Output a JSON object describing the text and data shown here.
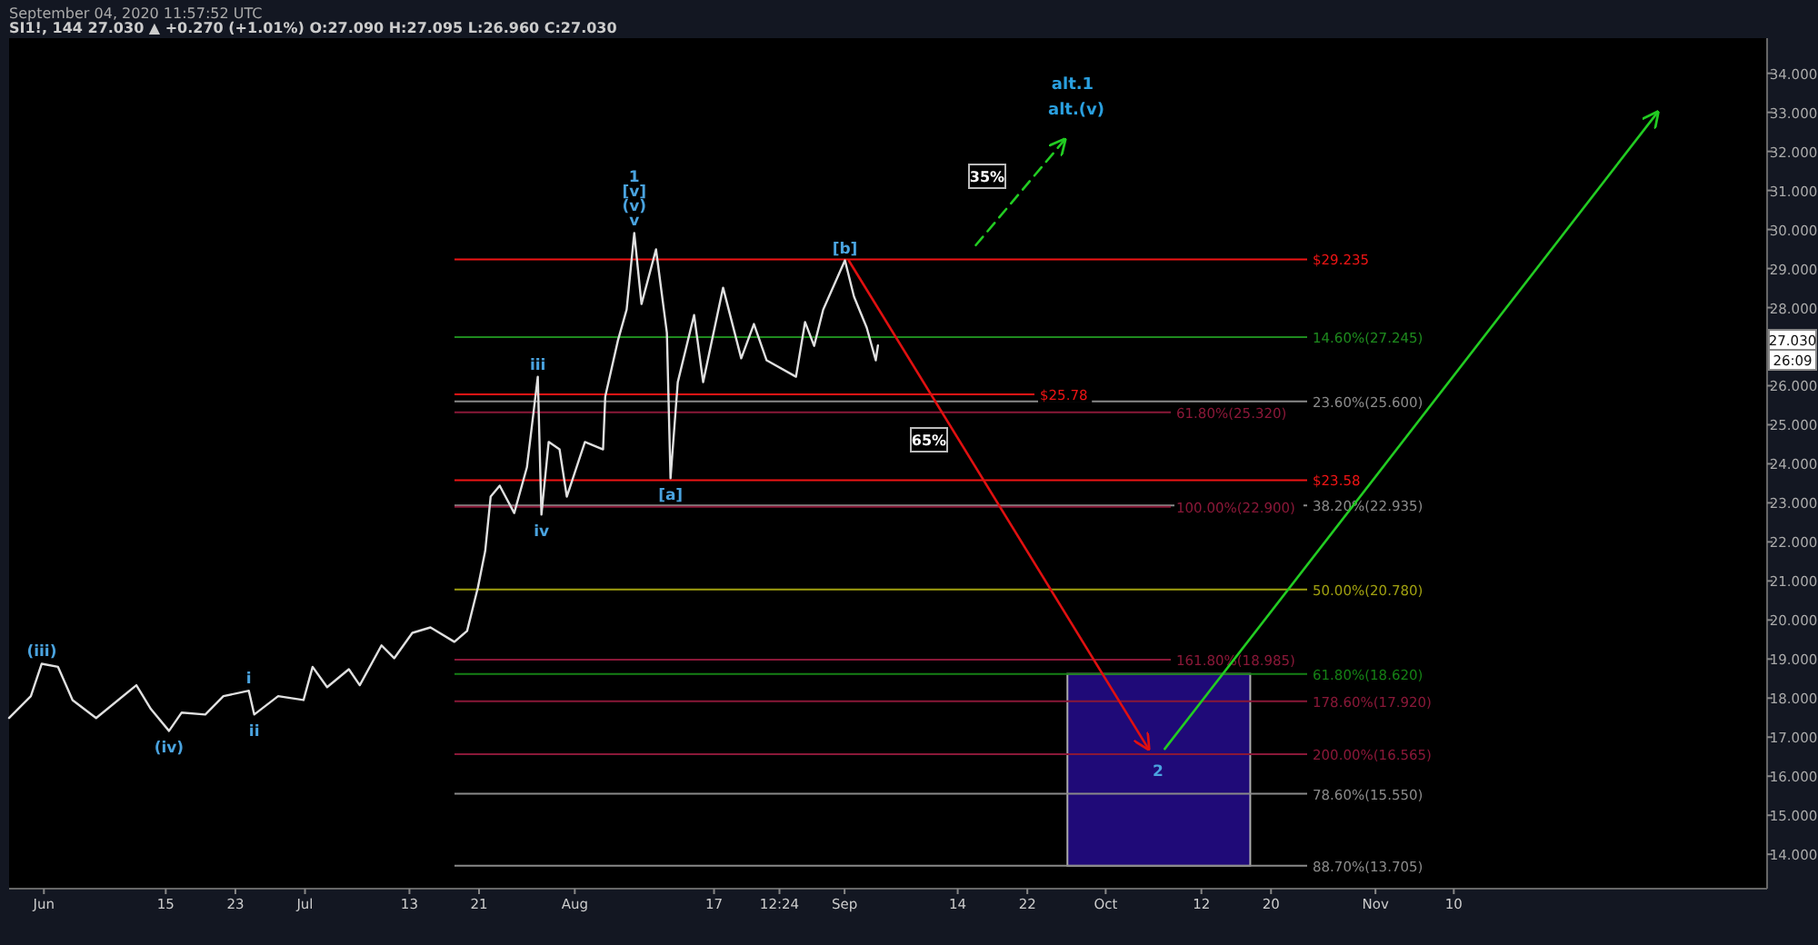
{
  "chart_data": {
    "type": "line",
    "title": "SI1!, 144  27.030 ▲ +0.270 (+1.01%) O:27.090 H:27.095 L:26.960 C:27.030",
    "subtitle": "September 04, 2020 11:57:52 UTC",
    "xlim": [
      "2020-05-28",
      "2020-12-16"
    ],
    "xticks": [
      {
        "value": "2020-06-01",
        "label": "Jun"
      },
      {
        "value": "2020-06-15",
        "label": "15"
      },
      {
        "value": "2020-06-23",
        "label": "23"
      },
      {
        "value": "2020-07-01",
        "label": "Jul"
      },
      {
        "value": "2020-07-13",
        "label": "13"
      },
      {
        "value": "2020-07-21",
        "label": "21"
      },
      {
        "value": "2020-08-01",
        "label": "Aug"
      },
      {
        "value": "2020-08-17",
        "label": "17"
      },
      {
        "value": "2020-08-24T12:24",
        "label": "12:24"
      },
      {
        "value": "2020-09-01",
        "label": "Sep"
      },
      {
        "value": "2020-09-14",
        "label": "14"
      },
      {
        "value": "2020-09-22",
        "label": "22"
      },
      {
        "value": "2020-10-01",
        "label": "Oct"
      },
      {
        "value": "2020-10-12",
        "label": "12"
      },
      {
        "value": "2020-10-20",
        "label": "20"
      },
      {
        "value": "2020-11-01",
        "label": "Nov"
      },
      {
        "value": "2020-11-10",
        "label": "10"
      }
    ],
    "ylim": [
      13.12,
      34.9
    ],
    "yticks": [
      {
        "value": 14,
        "label": "14.000"
      },
      {
        "value": 15,
        "label": "15.000"
      },
      {
        "value": 16,
        "label": "16.000"
      },
      {
        "value": 17,
        "label": "17.000"
      },
      {
        "value": 18,
        "label": "18.000"
      },
      {
        "value": 19,
        "label": "19.000"
      },
      {
        "value": 20,
        "label": "20.000"
      },
      {
        "value": 21,
        "label": "21.000"
      },
      {
        "value": 22,
        "label": "22.000"
      },
      {
        "value": 23,
        "label": "23.000"
      },
      {
        "value": 24,
        "label": "24.000"
      },
      {
        "value": 25,
        "label": "25.000"
      },
      {
        "value": 26,
        "label": "26.000"
      },
      {
        "value": 28,
        "label": "28.000"
      },
      {
        "value": 29,
        "label": "29.000"
      },
      {
        "value": 30,
        "label": "30.000"
      },
      {
        "value": 31,
        "label": "31.000"
      },
      {
        "value": 32,
        "label": "32.000"
      },
      {
        "value": 33,
        "label": "33.000"
      },
      {
        "value": 34,
        "label": "34.000"
      }
    ],
    "grid": false,
    "marker": "none",
    "series": [
      {
        "color": "#e0e0e0",
        "x": [
          "2020-05-28",
          "2020-05-30T12:00",
          "2020-05-31T18:00",
          "2020-06-02T15:00",
          "2020-06-04T07:00",
          "2020-06-07",
          "2020-06-11T15:00",
          "2020-06-13T07:00",
          "2020-06-15T09:00",
          "2020-06-16T20:00",
          "2020-06-19T13:00",
          "2020-06-21T15:00",
          "2020-06-24T13:00",
          "2020-06-25T04:00",
          "2020-06-27T22:00",
          "2020-06-30T20:00",
          "2020-07-01T21:00",
          "2020-07-03T13:00",
          "2020-07-06T01:00",
          "2020-07-07T07:00",
          "2020-07-09T19:00",
          "2020-07-11T06:00",
          "2020-07-13T08:00",
          "2020-07-15T10:00",
          "2020-07-18T04:00",
          "2020-07-19T15:00",
          "2020-07-20T21:00",
          "2020-07-21T17:00",
          "2020-07-22T08:00",
          "2020-07-23T09:00",
          "2020-07-25T01:00",
          "2020-07-26T12:00",
          "2020-07-27T18:00",
          "2020-07-28T04:00",
          "2020-07-29",
          "2020-07-30T06:00",
          "2020-07-31T02:00",
          "2020-08-02T04:00",
          "2020-08-04T06:00",
          "2020-08-04T12:00",
          "2020-08-05T23:00",
          "2020-08-06T23:00",
          "2020-08-07T20:00",
          "2020-08-08T16:00",
          "2020-08-10T08:00",
          "2020-08-11T14:00",
          "2020-08-12",
          "2020-08-12T20:00",
          "2020-08-14T17:00",
          "2020-08-15T18:00",
          "2020-08-18T01:00",
          "2020-08-20T03:00",
          "2020-08-21T14:00",
          "2020-08-23T01:00",
          "2020-08-26T10:00",
          "2020-08-27T11:00",
          "2020-08-28T12:00",
          "2020-08-29T13:00",
          "2020-09-01T01:00",
          "2020-09-02T02:00",
          "2020-09-03T13:00",
          "2020-09-04T14:00",
          "2020-09-04T20:00"
        ],
        "values": [
          17.49,
          18.05,
          18.88,
          18.8,
          17.95,
          17.49,
          18.33,
          17.72,
          17.16,
          17.63,
          17.58,
          18.05,
          18.19,
          17.58,
          18.05,
          17.95,
          18.8,
          18.28,
          18.74,
          18.33,
          19.35,
          19.02,
          19.67,
          19.81,
          19.44,
          19.72,
          20.84,
          21.77,
          23.16,
          23.44,
          22.74,
          23.91,
          26.23,
          22.7,
          24.56,
          24.37,
          23.16,
          24.56,
          24.37,
          25.72,
          27.16,
          27.95,
          29.91,
          28.09,
          29.49,
          27.35,
          23.63,
          26.09,
          27.81,
          26.09,
          28.51,
          26.7,
          27.58,
          26.65,
          26.23,
          27.63,
          27.02,
          27.95,
          29.21,
          28.28,
          27.49,
          26.65,
          27.03
        ]
      },
      {
        "color": "#e01010",
        "x": [
          "2020-09-01T12:00",
          "2020-10-05T22:00"
        ],
        "values": [
          29.2,
          16.7
        ]
      },
      {
        "color": "#22cc22",
        "x": [
          "2020-10-07T19:00",
          "2020-12-03T10:00"
        ],
        "values": [
          16.7,
          33.0
        ]
      },
      {
        "color": "#22cc22",
        "line_style": "dashed",
        "x": [
          "2020-09-16T02:00",
          "2020-09-26T07:00"
        ],
        "values": [
          29.6,
          32.3
        ]
      }
    ],
    "ref_lines": [
      {
        "axis": "y",
        "value": 27.245,
        "label": "14.60%(27.245)",
        "color": "#1e8a1e"
      },
      {
        "axis": "y",
        "value": 25.6,
        "label": "23.60%(25.600)",
        "color": "#8a8a8a"
      },
      {
        "axis": "y",
        "value": 22.935,
        "label": "38.20%(22.935)",
        "color": "#8a8a8a"
      },
      {
        "axis": "y",
        "value": 20.78,
        "label": "50.00%(20.780)",
        "color": "#a0a010"
      },
      {
        "axis": "y",
        "value": 18.62,
        "label": "61.80%(18.620)",
        "color": "#158015"
      },
      {
        "axis": "y",
        "value": 15.55,
        "label": "78.60%(15.550)",
        "color": "#8a8a8a"
      },
      {
        "axis": "y",
        "value": 13.705,
        "label": "88.70%(13.705)",
        "color": "#8a8a8a"
      },
      {
        "axis": "y",
        "value": 25.32,
        "label": "61.80%(25.320)",
        "color": "#8a1838"
      },
      {
        "axis": "y",
        "value": 22.9,
        "label": "100.00%(22.900)",
        "color": "#8a1838"
      },
      {
        "axis": "y",
        "value": 18.985,
        "label": "161.80%(18.985)",
        "color": "#8a1838"
      },
      {
        "axis": "y",
        "value": 17.92,
        "label": "178.60%(17.920)",
        "color": "#8a1838"
      },
      {
        "axis": "y",
        "value": 16.565,
        "label": "200.00%(16.565)",
        "color": "#8a1838"
      },
      {
        "axis": "y",
        "value": 29.235,
        "label": "$29.235",
        "color": "#f01414"
      },
      {
        "axis": "y",
        "value": 25.78,
        "label": "$25.78",
        "color": "#f01414"
      },
      {
        "axis": "y",
        "value": 23.58,
        "label": "$23.58",
        "color": "#f01414"
      }
    ],
    "bands": [
      {
        "axis": "y",
        "from": 13.705,
        "to": 18.62,
        "color": "#1f0a78"
      }
    ],
    "annotations": [
      {
        "text": "(iii)",
        "x": "2020-05-31T18:00",
        "y": 18.88
      },
      {
        "text": "(iv)",
        "x": "2020-06-15T09:00",
        "y": 17.16
      },
      {
        "text": "i",
        "x": "2020-06-24T13:00",
        "y": 18.19
      },
      {
        "text": "ii",
        "x": "2020-06-25T04:00",
        "y": 17.58
      },
      {
        "text": "iii",
        "x": "2020-07-27T18:00",
        "y": 26.23
      },
      {
        "text": "iv",
        "x": "2020-07-28T04:00",
        "y": 22.7
      },
      {
        "text": "v",
        "x": "2020-08-07T20:00",
        "y": 29.91
      },
      {
        "text": "(v)",
        "x": "2020-08-07T20:00",
        "y": 29.91
      },
      {
        "text": "[v]",
        "x": "2020-08-07T20:00",
        "y": 29.91
      },
      {
        "text": "1",
        "x": "2020-08-07T20:00",
        "y": 29.91
      },
      {
        "text": "[a]",
        "x": "2020-08-12",
        "y": 23.63
      },
      {
        "text": "[b]",
        "x": "2020-09-01T01:00",
        "y": 29.21
      },
      {
        "text": "2",
        "x": "2020-10-07",
        "y": 16.565
      },
      "35%",
      "65%",
      "alt.(v)",
      "alt.1",
      "27.030",
      "26:09"
    ]
  }
}
